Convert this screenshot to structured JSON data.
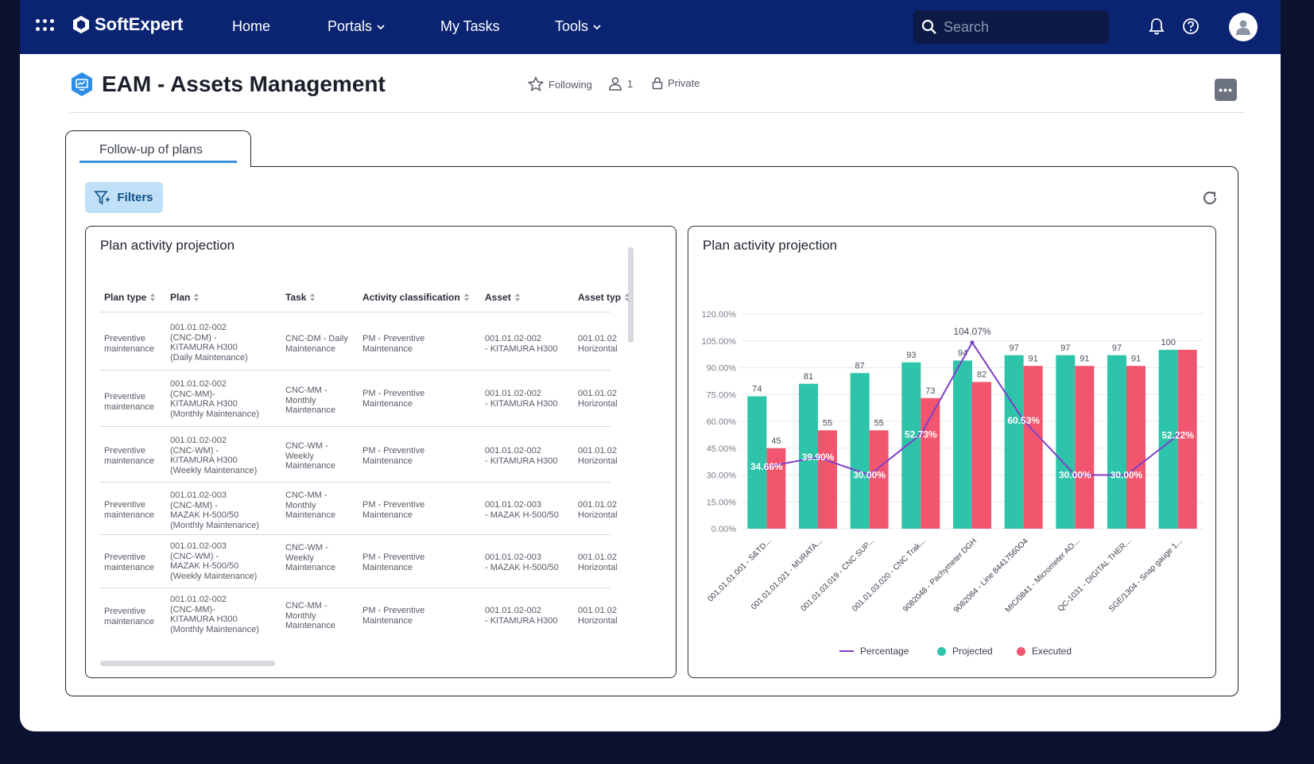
{
  "topbar": {
    "brand": "SoftExpert",
    "nav": [
      {
        "label": "Home",
        "has_caret": false
      },
      {
        "label": "Portals",
        "has_caret": true
      },
      {
        "label": "My Tasks",
        "has_caret": false
      },
      {
        "label": "Tools",
        "has_caret": true
      }
    ],
    "search_placeholder": "Search"
  },
  "page": {
    "title": "EAM - Assets Management",
    "following": "Following",
    "members": "1",
    "privacy": "Private",
    "more": "•••"
  },
  "tab": {
    "label": "Follow-up of plans"
  },
  "filters_label": "Filters",
  "table_card": {
    "title": "Plan activity projection",
    "columns": [
      "Plan type",
      "Plan",
      "Task",
      "Activity classification",
      "Asset",
      "Asset typ"
    ],
    "rows": [
      {
        "plan_type": "Preventive\nmaintenance",
        "plan": "001.01.02-002\n(CNC-DM) -\nKITAMURA H300\n(Daily Maintenance)",
        "task": "CNC-DM - Daily\nMaintenance",
        "activity": "PM - Preventive\nMaintenance",
        "asset": "001.01.02-002\n- KITAMURA H300",
        "asset_type": "001.01.02\nHorizontal"
      },
      {
        "plan_type": "Preventive\nmaintenance",
        "plan": "001.01.02-002\n(CNC-MM)-\nKITAMURA H300\n(Monthly Maintenance)",
        "task": "CNC-MM -\nMonthly\nMaintenance",
        "activity": "PM - Preventive\nMaintenance",
        "asset": "001.01.02-002\n- KITAMURA H300",
        "asset_type": "001.01.02\nHorizontal"
      },
      {
        "plan_type": "Preventive\nmaintenance",
        "plan": "001.01.02-002\n(CNC-WM) -\nKITAMURA H300\n(Weekly Maintenance)",
        "task": "CNC-WM -\nWeekly\nMaintenance",
        "activity": "PM - Preventive\nMaintenance",
        "asset": "001.01.02-002\n- KITAMURA H300",
        "asset_type": "001.01.02\nHorizontal"
      },
      {
        "plan_type": "Preventive\nmaintenance",
        "plan": "001.01.02-003\n(CNC-MM) -\nMAZAK H-500/50\n(Monthly Maintenance)",
        "task": "CNC-MM -\nMonthly\nMaintenance",
        "activity": "PM - Preventive\nMaintenance",
        "asset": "001.01.02-003\n- MAZAK H-500/50",
        "asset_type": "001.01.02\nHorizontal"
      },
      {
        "plan_type": "Preventive\nmaintenance",
        "plan": "001.01.02-003\n(CNC-WM) -\nMAZAK H-500/50\n(Weekly Maintenance)",
        "task": "CNC-WM -\nWeekly\nMaintenance",
        "activity": "PM - Preventive\nMaintenance",
        "asset": "001.01.02-003\n- MAZAK H-500/50",
        "asset_type": "001.01.02\nHorizontal"
      },
      {
        "plan_type": "Preventive\nmaintenance",
        "plan": "001.01.02-002\n(CNC-MM)-\nKITAMURA H300\n(Monthly Maintenance)",
        "task": "CNC-MM -\nMonthly\nMaintenance",
        "activity": "PM - Preventive\nMaintenance",
        "asset": "001.01.02-002\n- KITAMURA H300",
        "asset_type": "001.01.02\nHorizontal"
      }
    ]
  },
  "colors": {
    "projected": "#2ec4aa",
    "executed": "#f2566f",
    "percentage": "#7d3fc8",
    "topbar": "#0a2472"
  },
  "chart_data": {
    "type": "bar",
    "title": "Plan activity projection",
    "categories": [
      "001.01.01.001 - S&TD...",
      "001.01.01.021 - MURATA...",
      "001.01.03.019 - CNC SUP...",
      "001.01.03.020 - CNC Trak...",
      "9082048 - Pachymeter DGH",
      "9082084 - Line 84417560O4",
      "MIC/0841 - Micrometer AO...",
      "QC-1031 - DIGITAL THER...",
      "SGE/1304 - Snap gauge 1..."
    ],
    "series": [
      {
        "name": "Projected",
        "values": [
          74,
          81,
          87,
          93,
          94,
          97,
          97,
          97,
          100
        ],
        "labels": [
          "74",
          "81",
          "87",
          "93",
          "94",
          "97",
          "97",
          "97",
          "100"
        ]
      },
      {
        "name": "Executed",
        "values": [
          45,
          55,
          55,
          73,
          82,
          91,
          91,
          91,
          100
        ],
        "labels": [
          "45",
          "55",
          "55",
          "73",
          "82",
          "91",
          "91",
          "91",
          ""
        ]
      },
      {
        "name": "Percentage",
        "type": "line",
        "values": [
          34.66,
          39.9,
          30.0,
          52.73,
          104.07,
          60.53,
          30.0,
          30.0,
          52.22
        ],
        "labels": [
          "34.66%",
          "39.90%",
          "30.00%",
          "52.73%",
          "104.07%",
          "60.53%",
          "30.00%",
          "30.00%",
          "52.22%"
        ]
      }
    ],
    "y_ticks": [
      "0.00%",
      "15.00%",
      "30.00%",
      "45.00%",
      "60.00%",
      "75.00%",
      "90.00%",
      "105.00%",
      "120.00%"
    ],
    "ylim": [
      0,
      120
    ],
    "legend": [
      "Percentage",
      "Projected",
      "Executed"
    ]
  }
}
